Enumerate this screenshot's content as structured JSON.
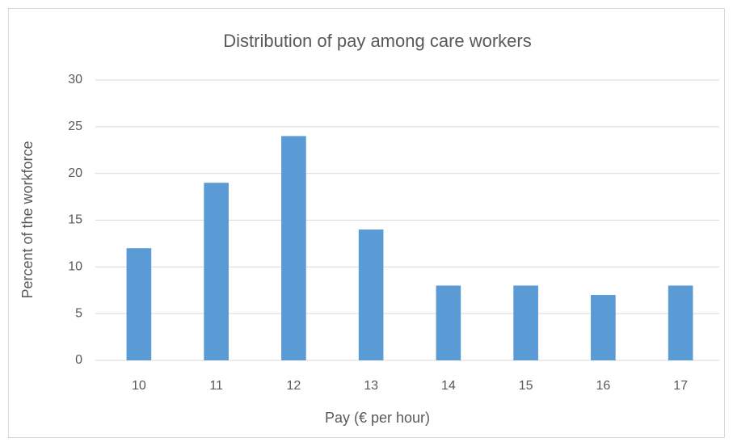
{
  "chart_data": {
    "type": "bar",
    "title": "Distribution of pay among care workers",
    "x_label": "Pay (€ per hour)",
    "y_label": "Percent of the workforce",
    "categories": [
      "10",
      "11",
      "12",
      "13",
      "14",
      "15",
      "16",
      "17"
    ],
    "values": [
      12,
      19,
      24,
      14,
      8,
      8,
      7,
      8
    ],
    "color": "#5b9bd5",
    "ylim": [
      0,
      30
    ],
    "yticks": [
      0,
      5,
      10,
      15,
      20,
      25,
      30
    ],
    "grid": true
  }
}
